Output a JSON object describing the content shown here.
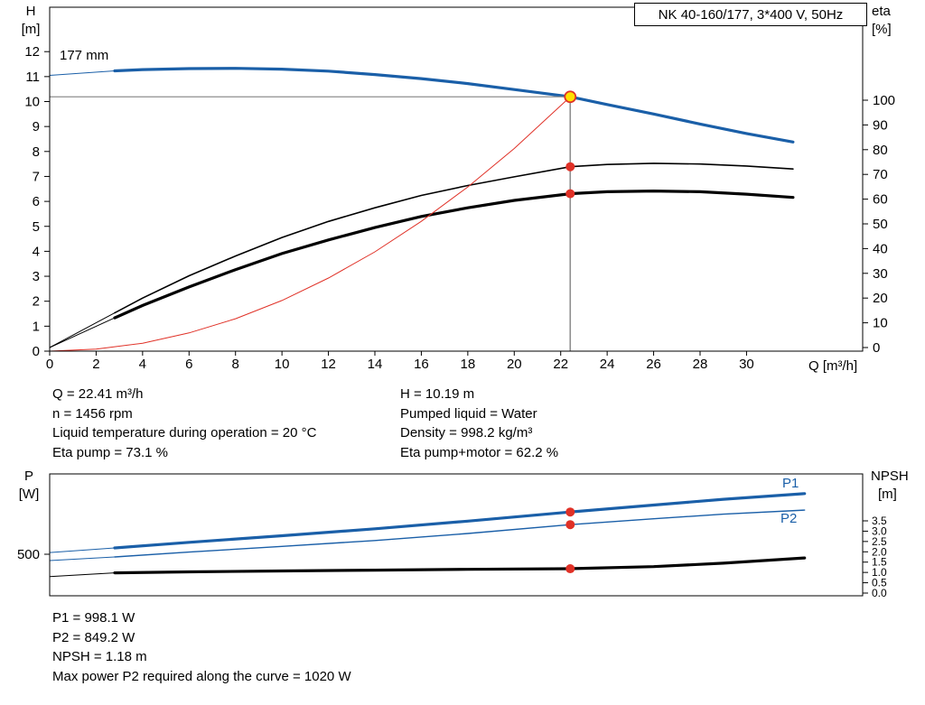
{
  "title_box": "NK 40-160/177, 3*400 V, 50Hz",
  "colors": {
    "blue": "#1a5fa8",
    "red": "#e03127",
    "black": "#000000",
    "duty_fill": "#ffe000",
    "crosshair": "#8f8f8f"
  },
  "axes": {
    "h": "H",
    "h_unit": "[m]",
    "eta": "eta",
    "eta_unit": "[%]",
    "q": "Q [m³/h]",
    "p": "P",
    "p_unit": "[W]",
    "npsh": "NPSH",
    "npsh_unit": "[m]"
  },
  "impeller_label": "177 mm",
  "p1_label": "P1",
  "p2_label": "P2",
  "info": {
    "left": [
      "Q = 22.41 m³/h",
      "n = 1456 rpm",
      "Liquid temperature during operation = 20 °C",
      "Eta pump = 73.1 %"
    ],
    "right": [
      "H = 10.19 m",
      "Pumped liquid = Water",
      "Density = 998.2 kg/m³",
      "Eta pump+motor = 62.2 %"
    ]
  },
  "footer": [
    "P1 = 998.1 W",
    "P2 = 849.2 W",
    "NPSH = 1.18 m",
    "Max power P2 required along the curve = 1020 W"
  ],
  "chart_data": [
    {
      "type": "line",
      "title": "NK 40-160/177, 3*400 V, 50Hz",
      "x_label": "Q [m³/h]",
      "x_range": [
        0,
        35
      ],
      "x_ticks": [
        0,
        2,
        4,
        6,
        8,
        10,
        12,
        14,
        16,
        18,
        20,
        22,
        24,
        26,
        28,
        30
      ],
      "y_left_label": "H [m]",
      "y_left_range": [
        0,
        13.8
      ],
      "y_left_ticks": [
        0,
        1,
        2,
        3,
        4,
        5,
        6,
        7,
        8,
        9,
        10,
        11,
        12
      ],
      "y_right_label": "eta [%]",
      "y_right_range": [
        0,
        137
      ],
      "y_right_ticks": [
        0,
        10,
        20,
        30,
        40,
        50,
        60,
        70,
        80,
        90,
        100
      ],
      "legend_position": "none",
      "grid": false,
      "series": [
        {
          "name": "head-177mm",
          "label": "177 mm",
          "axis": "left",
          "color": "#1a5fa8",
          "width": 3.2,
          "thin_until": 2.8,
          "points": [
            [
              0,
              11.05
            ],
            [
              2.8,
              11.23
            ],
            [
              4,
              11.28
            ],
            [
              6,
              11.32
            ],
            [
              8,
              11.33
            ],
            [
              10,
              11.3
            ],
            [
              12,
              11.22
            ],
            [
              14,
              11.08
            ],
            [
              16,
              10.92
            ],
            [
              18,
              10.72
            ],
            [
              20,
              10.48
            ],
            [
              22.41,
              10.19
            ],
            [
              24,
              9.88
            ],
            [
              26,
              9.5
            ],
            [
              28,
              9.1
            ],
            [
              30,
              8.72
            ],
            [
              32,
              8.38
            ]
          ]
        },
        {
          "name": "eta-pump",
          "axis": "right",
          "color": "#000000",
          "width": 1.6,
          "thin_until": 2.8,
          "points": [
            [
              0,
              0
            ],
            [
              2.8,
              14
            ],
            [
              4,
              20
            ],
            [
              6,
              29
            ],
            [
              8,
              37
            ],
            [
              10,
              44.5
            ],
            [
              12,
              51
            ],
            [
              14,
              56.5
            ],
            [
              16,
              61.5
            ],
            [
              18,
              65.5
            ],
            [
              20,
              69
            ],
            [
              22.41,
              73.1
            ],
            [
              24,
              74
            ],
            [
              26,
              74.5
            ],
            [
              28,
              74.2
            ],
            [
              30,
              73.4
            ],
            [
              32,
              72.2
            ]
          ]
        },
        {
          "name": "eta-pump-motor",
          "axis": "right",
          "color": "#000000",
          "width": 3.2,
          "thin_until": 2.8,
          "points": [
            [
              0,
              0
            ],
            [
              2.8,
              12
            ],
            [
              4,
              17
            ],
            [
              6,
              24.5
            ],
            [
              8,
              31.5
            ],
            [
              10,
              38
            ],
            [
              12,
              43.5
            ],
            [
              14,
              48.5
            ],
            [
              16,
              53
            ],
            [
              18,
              56.5
            ],
            [
              20,
              59.5
            ],
            [
              22.41,
              62.2
            ],
            [
              24,
              63
            ],
            [
              26,
              63.3
            ],
            [
              28,
              63
            ],
            [
              30,
              62
            ],
            [
              32,
              60.7
            ]
          ]
        },
        {
          "name": "system-curve",
          "axis": "left",
          "color": "#e03127",
          "width": 1,
          "thin_until": 0,
          "points": [
            [
              0,
              0
            ],
            [
              2,
              0.08
            ],
            [
              4,
              0.32
            ],
            [
              6,
              0.73
            ],
            [
              8,
              1.3
            ],
            [
              10,
              2.03
            ],
            [
              12,
              2.93
            ],
            [
              14,
              3.98
            ],
            [
              16,
              5.2
            ],
            [
              18,
              6.58
            ],
            [
              20,
              8.12
            ],
            [
              22.41,
              10.19
            ]
          ]
        }
      ],
      "duty_point": {
        "q": 22.41,
        "h": 10.19
      },
      "markers": [
        {
          "name": "duty-point-marker",
          "q": 22.41,
          "v": 10.19,
          "axis": "left",
          "style": "duty"
        },
        {
          "name": "eta-pump-point",
          "q": 22.41,
          "v": 73.1,
          "axis": "right",
          "style": "dot"
        },
        {
          "name": "eta-pump-motor-point",
          "q": 22.41,
          "v": 62.2,
          "axis": "right",
          "style": "dot"
        }
      ]
    },
    {
      "type": "line",
      "x_range": [
        0,
        35
      ],
      "x_ticks": [],
      "y_left_label": "P [W]",
      "y_left_ticks": [
        500
      ],
      "y_right_label": "NPSH [m]",
      "y_right_ticks": [
        "0.0",
        "0.5",
        "1.0",
        "1.5",
        "2.0",
        "2.5",
        "3.0",
        "3.5"
      ],
      "grid": false,
      "series": [
        {
          "name": "p1",
          "label": "P1",
          "axis": "left",
          "color": "#1a5fa8",
          "width": 3.2,
          "thin_until": 2.8,
          "points": [
            [
              0,
              520
            ],
            [
              2.8,
              575
            ],
            [
              6,
              640
            ],
            [
              10,
              718
            ],
            [
              14,
              800
            ],
            [
              18,
              890
            ],
            [
              22.41,
              998
            ],
            [
              26,
              1080
            ],
            [
              29,
              1148
            ],
            [
              32.5,
              1215
            ]
          ]
        },
        {
          "name": "p2",
          "label": "P2",
          "axis": "left",
          "color": "#1a5fa8",
          "width": 1.4,
          "thin_until": 2.8,
          "points": [
            [
              0,
              425
            ],
            [
              2.8,
              468
            ],
            [
              6,
              525
            ],
            [
              10,
              593
            ],
            [
              14,
              662
            ],
            [
              18,
              745
            ],
            [
              22.41,
              849
            ],
            [
              26,
              918
            ],
            [
              29,
              972
            ],
            [
              32.5,
              1020
            ]
          ]
        },
        {
          "name": "npsh",
          "axis": "right",
          "color": "#000000",
          "width": 3.2,
          "thin_until": 2.8,
          "points": [
            [
              0,
              0.8
            ],
            [
              2.8,
              0.98
            ],
            [
              6,
              1.03
            ],
            [
              10,
              1.07
            ],
            [
              14,
              1.11
            ],
            [
              18,
              1.15
            ],
            [
              22.41,
              1.18
            ],
            [
              26,
              1.28
            ],
            [
              29,
              1.45
            ],
            [
              32.5,
              1.7
            ]
          ]
        }
      ],
      "markers": [
        {
          "name": "p1-point",
          "q": 22.41,
          "v": 998,
          "axis": "left",
          "style": "dot"
        },
        {
          "name": "p2-point",
          "q": 22.41,
          "v": 849,
          "axis": "left",
          "style": "dot"
        },
        {
          "name": "npsh-point",
          "q": 22.41,
          "v": 1.18,
          "axis": "right",
          "style": "dot"
        }
      ]
    }
  ]
}
